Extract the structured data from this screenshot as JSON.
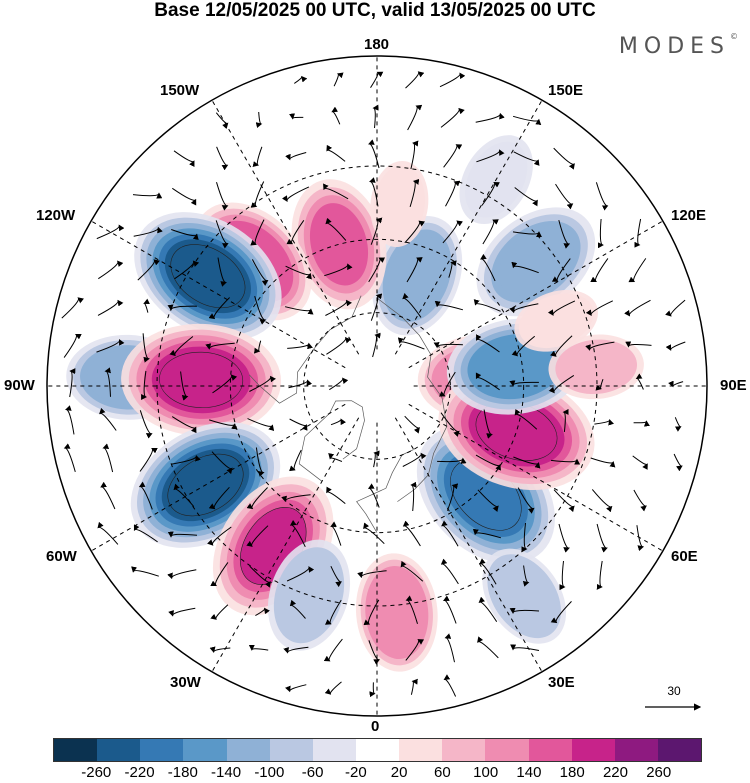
{
  "title": "Base 12/05/2025 00 UTC, valid 13/05/2025 00 UTC",
  "logo": "MODES",
  "logo_mark": "©",
  "longitude_labels": {
    "lon_180": "180",
    "lon_150w": "150W",
    "lon_150e": "150E",
    "lon_120w": "120W",
    "lon_120e": "120E",
    "lon_90w": "90W",
    "lon_90e": "90E",
    "lon_60w": "60W",
    "lon_60e": "60E",
    "lon_30w": "30W",
    "lon_30e": "30E",
    "lon_0": "0"
  },
  "reference_vector": {
    "label": "30"
  },
  "colorbar": {
    "colors": [
      "#0b3250",
      "#1b5a8c",
      "#3579b4",
      "#5a98c8",
      "#8fb1d6",
      "#bac8e2",
      "#e2e3f0",
      "#ffffff",
      "#fbe0e0",
      "#f5b6c8",
      "#ef8cb1",
      "#e2579b",
      "#c7238a",
      "#8e1a80",
      "#5c176f"
    ],
    "tick_labels": [
      "-260",
      "-220",
      "-180",
      "-140",
      "-100",
      "-60",
      "-20",
      "20",
      "60",
      "100",
      "140",
      "180",
      "220",
      "260"
    ]
  },
  "anomalies": [
    {
      "lon": 95,
      "lat": 62,
      "value": 120
    },
    {
      "lon": 160,
      "lat": 58,
      "value": -120
    },
    {
      "lon": 195,
      "lat": 50,
      "value": 140
    },
    {
      "lon": 150,
      "lat": 25,
      "value": -60
    },
    {
      "lon": 173,
      "lat": 40,
      "value": 40
    },
    {
      "lon": 225,
      "lat": 42,
      "value": 150
    },
    {
      "lon": 237,
      "lat": 35,
      "value": -230
    },
    {
      "lon": 268,
      "lat": 22,
      "value": -120
    },
    {
      "lon": 268,
      "lat": 42,
      "value": 200
    },
    {
      "lon": 300,
      "lat": 36,
      "value": -230
    },
    {
      "lon": 327,
      "lat": 38,
      "value": 180
    },
    {
      "lon": 342,
      "lat": 30,
      "value": -100
    },
    {
      "lon": 5,
      "lat": 28,
      "value": 110
    },
    {
      "lon": 45,
      "lat": 48,
      "value": -200
    },
    {
      "lon": 72,
      "lat": 50,
      "value": 200
    },
    {
      "lon": 98,
      "lat": 52,
      "value": -150
    },
    {
      "lon": 128,
      "lat": 35,
      "value": -140
    },
    {
      "lon": 95,
      "lat": 30,
      "value": 60
    },
    {
      "lon": 35,
      "lat": 20,
      "value": -80
    },
    {
      "lon": 110,
      "lat": 38,
      "value": 40
    }
  ]
}
